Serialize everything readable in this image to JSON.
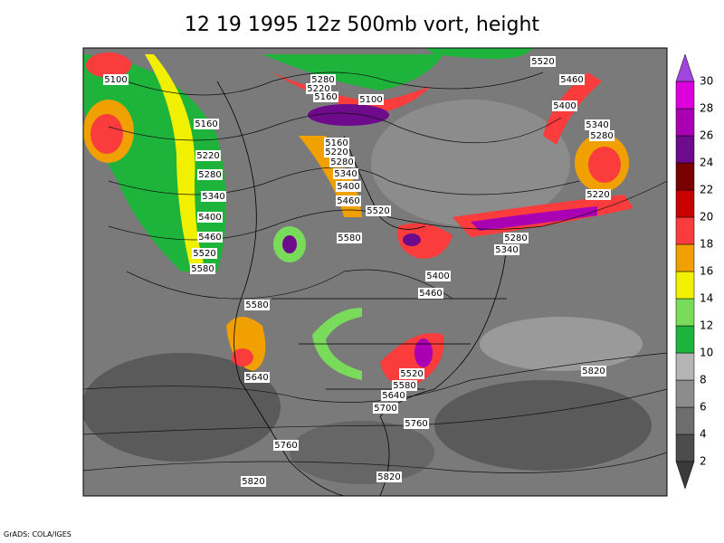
{
  "title": "12 19 1995 12z 500mb vort, height",
  "footer": "GrADS: COLA/IGES",
  "contour_labels": [
    5100,
    5280,
    5220,
    5160,
    5100,
    5520,
    5460,
    5400,
    5340,
    5280,
    5160,
    5220,
    5280,
    5340,
    5400,
    5460,
    5520,
    5580,
    5160,
    5220,
    5280,
    5340,
    5400,
    5460,
    5520,
    5580,
    5220,
    5280,
    5340,
    5400,
    5460,
    5580,
    5640,
    5520,
    5580,
    5640,
    5700,
    5760,
    5820,
    5760,
    5820,
    5820
  ],
  "colorbar": {
    "levels": [
      2,
      4,
      6,
      8,
      10,
      12,
      14,
      16,
      18,
      20,
      22,
      24,
      26,
      28,
      30
    ],
    "colors": [
      "#3a3a3a",
      "#4c4c4c",
      "#6e6e6e",
      "#8c8c8c",
      "#b4b4b4",
      "#1eb43c",
      "#78dc5a",
      "#f0f000",
      "#f0a000",
      "#fa3c3c",
      "#c80000",
      "#780000",
      "#6e0a8c",
      "#aa00b4",
      "#dc00dc",
      "#a046dc"
    ]
  }
}
